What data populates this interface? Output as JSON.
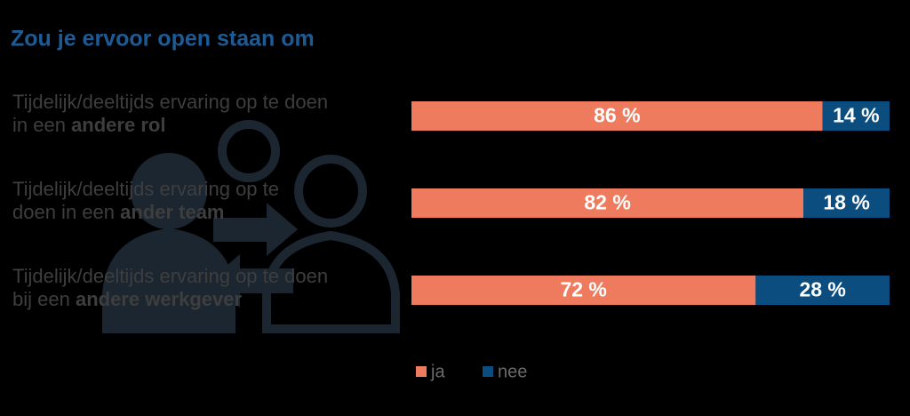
{
  "chart_data": {
    "type": "stacked-bar",
    "title": "Zou je ervoor open staan om",
    "categories": [
      [
        "Tijdelijk/deeltijds ervaring op te doen",
        "in een ",
        "andere rol"
      ],
      [
        "Tijdelijk/deeltijds ervaring op te",
        "doen in een ",
        "ander team"
      ],
      [
        "Tijdelijk/deeltijds ervaring op te doen",
        "bij een ",
        "andere werkgever"
      ]
    ],
    "xlim": [
      0,
      100
    ],
    "series": [
      {
        "name": "ja",
        "color": "#ef7b5e",
        "values": [
          86,
          82,
          72
        ],
        "value_labels": [
          "86 %",
          "82 %",
          "72 %"
        ]
      },
      {
        "name": "nee",
        "color": "#0b4d7e",
        "values": [
          14,
          18,
          28
        ],
        "value_labels": [
          "14 %",
          "18 %",
          "28 %"
        ]
      }
    ]
  }
}
